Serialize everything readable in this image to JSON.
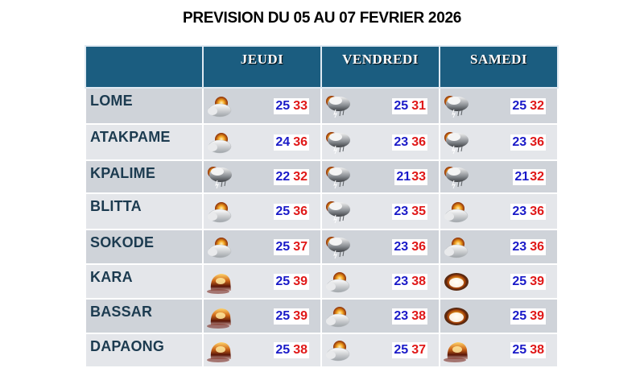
{
  "title": "PREVISION DU 05 AU 07 FEVRIER 2026",
  "colors": {
    "header_bg": "#1b5d80",
    "row_odd": "#cfd3d9",
    "row_even": "#e4e6ea",
    "city_text": "#1c3b50",
    "tmin": "#1a1ac8",
    "tmax": "#e01818"
  },
  "columns": [
    "",
    "JEUDI",
    "VENDREDI",
    "SAMEDI"
  ],
  "rows": [
    {
      "city": "LOME",
      "days": [
        {
          "icon": "partly-cloudy-icon",
          "tmin": "25",
          "tmax": "33"
        },
        {
          "icon": "thunderstorm-icon",
          "tmin": "25",
          "tmax": "31"
        },
        {
          "icon": "thunderstorm-icon",
          "tmin": "25",
          "tmax": "32"
        }
      ]
    },
    {
      "city": "ATAKPAME",
      "days": [
        {
          "icon": "partly-cloudy-icon",
          "tmin": "24",
          "tmax": "36"
        },
        {
          "icon": "thunderstorm-icon",
          "tmin": "23",
          "tmax": "36"
        },
        {
          "icon": "thunderstorm-icon",
          "tmin": "23",
          "tmax": "36"
        }
      ]
    },
    {
      "city": "KPALIME",
      "days": [
        {
          "icon": "thunderstorm-icon",
          "tmin": "22",
          "tmax": "32"
        },
        {
          "icon": "thunderstorm-icon",
          "tmin": "21",
          "tmax": "33"
        },
        {
          "icon": "thunderstorm-icon",
          "tmin": "21",
          "tmax": "32"
        }
      ]
    },
    {
      "city": "BLITTA",
      "days": [
        {
          "icon": "partly-cloudy-icon",
          "tmin": "25",
          "tmax": "36"
        },
        {
          "icon": "thunderstorm-icon",
          "tmin": "23",
          "tmax": "35"
        },
        {
          "icon": "partly-cloudy-icon",
          "tmin": "23",
          "tmax": "36"
        }
      ]
    },
    {
      "city": "SOKODE",
      "days": [
        {
          "icon": "partly-cloudy-icon",
          "tmin": "25",
          "tmax": "37"
        },
        {
          "icon": "thunderstorm-icon",
          "tmin": "23",
          "tmax": "36"
        },
        {
          "icon": "partly-cloudy-icon",
          "tmin": "23",
          "tmax": "36"
        }
      ]
    },
    {
      "city": "KARA",
      "days": [
        {
          "icon": "hot-haze-icon",
          "tmin": "25",
          "tmax": "39"
        },
        {
          "icon": "partly-cloudy-icon",
          "tmin": "23",
          "tmax": "38"
        },
        {
          "icon": "hazy-sun-icon",
          "tmin": "25",
          "tmax": "39"
        }
      ]
    },
    {
      "city": "BASSAR",
      "days": [
        {
          "icon": "hot-haze-icon",
          "tmin": "25",
          "tmax": "39"
        },
        {
          "icon": "partly-cloudy-icon",
          "tmin": "23",
          "tmax": "38"
        },
        {
          "icon": "hazy-sun-icon",
          "tmin": "25",
          "tmax": "39"
        }
      ]
    },
    {
      "city": "DAPAONG",
      "days": [
        {
          "icon": "hot-haze-icon",
          "tmin": "25",
          "tmax": "38"
        },
        {
          "icon": "partly-cloudy-icon",
          "tmin": "25",
          "tmax": "37"
        },
        {
          "icon": "hot-haze-icon",
          "tmin": "25",
          "tmax": "38"
        }
      ]
    }
  ]
}
